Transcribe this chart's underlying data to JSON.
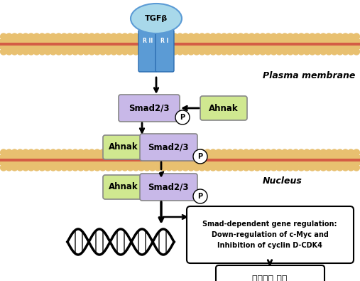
{
  "fig_width": 5.07,
  "fig_height": 3.95,
  "dpi": 100,
  "bg_color": "#ffffff",
  "plasma_membrane_label": "Plasma membrane",
  "nucleus_label": "Nucleus",
  "tgfb_label": "TGFβ",
  "rii_label": "R II",
  "ri_label": "R I",
  "smad_label": "Smad2/3",
  "ahnak_label": "Ahnak",
  "p_label": "P",
  "smad_box_color": "#c8b8e8",
  "ahnak_box_color": "#d0e890",
  "gene_box_text": "Smad-dependent gene regulation:\nDown-regulation of c-Myc and\nInhibition of cyclin D-CDK4",
  "cell_growth_text": "세포성장 억제",
  "receptor_color": "#5b9bd5",
  "receptor_light": "#a8d8ea",
  "mem_dot_color": "#e8c070",
  "mem_line_color": "#cc3333"
}
